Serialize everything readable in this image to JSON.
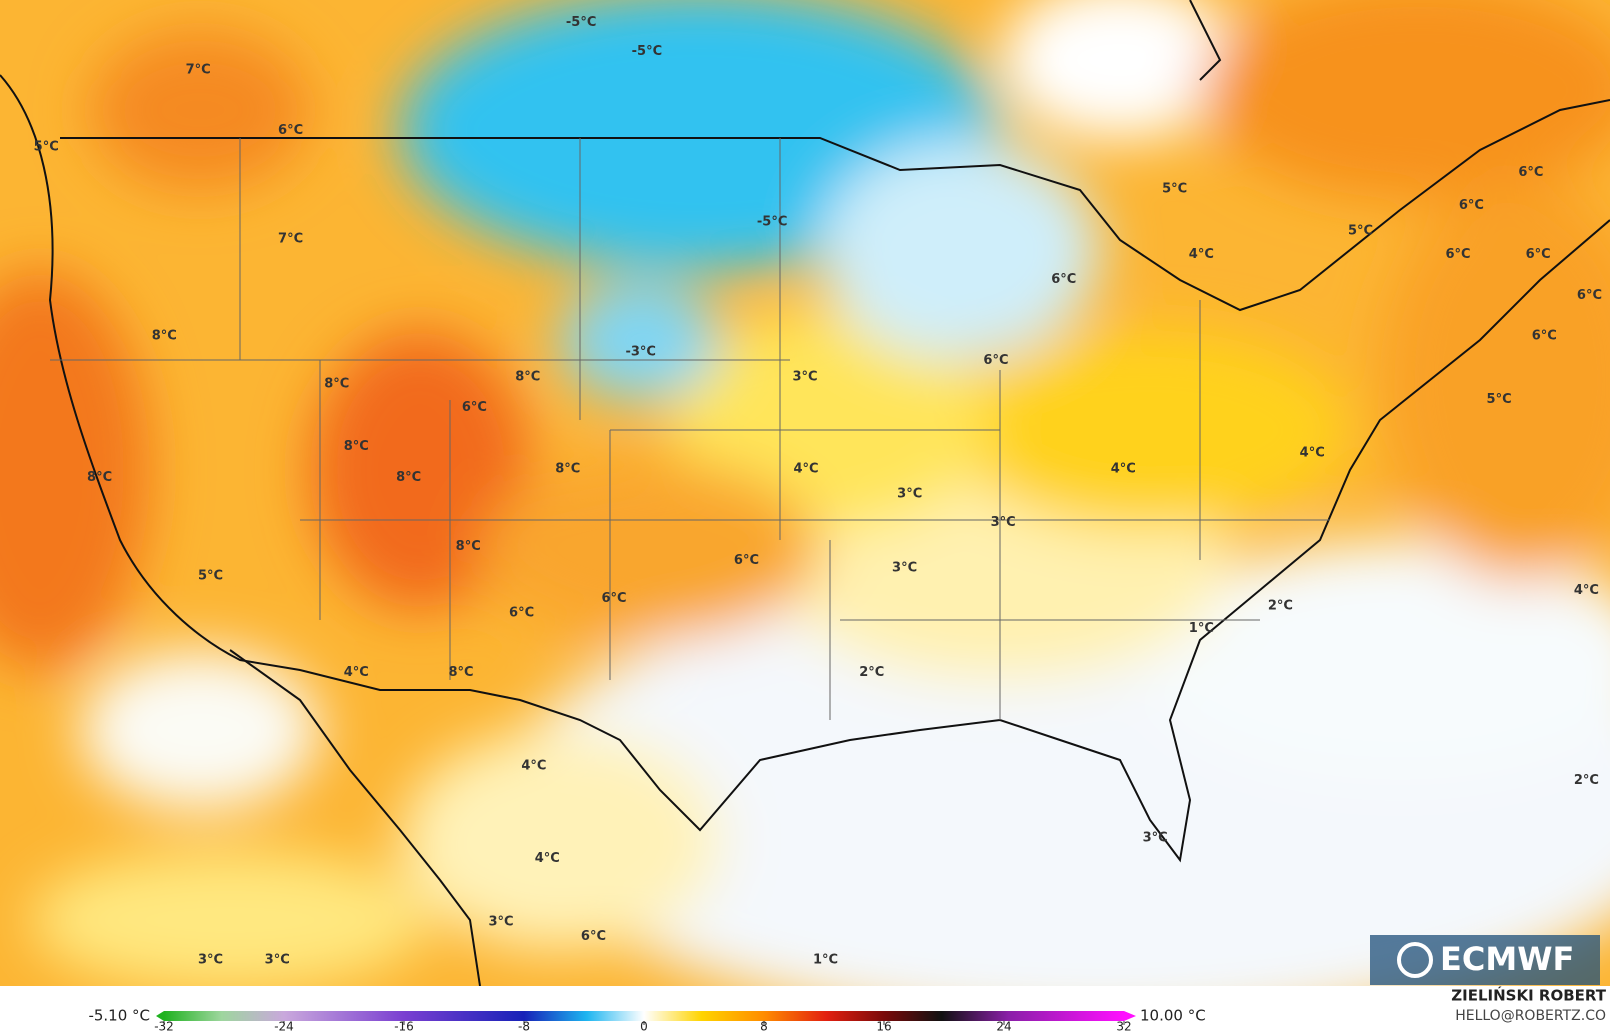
{
  "map": {
    "labels": [
      "-5°C",
      "-5°C",
      "7°C",
      "6°C",
      "5°C",
      "-5°C",
      "5°C",
      "5°C",
      "4°C",
      "6°C",
      "6°C",
      "7°C",
      "6°C",
      "6°C",
      "6°C",
      "6°C",
      "8°C",
      "6°C",
      "-3°C",
      "6°C",
      "3°C",
      "8°C",
      "8°C",
      "6°C",
      "5°C",
      "8°C",
      "4°C",
      "4°C",
      "8°C",
      "4°C",
      "8°C",
      "8°C",
      "3°C",
      "3°C",
      "8°C",
      "6°C",
      "3°C",
      "5°C",
      "6°C",
      "4°C",
      "2°C",
      "6°C",
      "1°C",
      "4°C",
      "8°C",
      "2°C",
      "4°C",
      "2°C",
      "4°C",
      "3°C",
      "3°C",
      "6°C",
      "3°C",
      "3°C",
      "1°C"
    ],
    "logo": "ECMWF"
  },
  "colorbar": {
    "min_label": "-5.10 °C",
    "max_label": "10.00 °C",
    "range": [
      -32,
      32
    ],
    "ticks": [
      -32,
      -24,
      -16,
      -8,
      0,
      8,
      16,
      24,
      32
    ]
  },
  "credits": {
    "author": "ZIELIŃSKI ROBERT",
    "email": "HELLO@ROBERTZ.CO"
  }
}
